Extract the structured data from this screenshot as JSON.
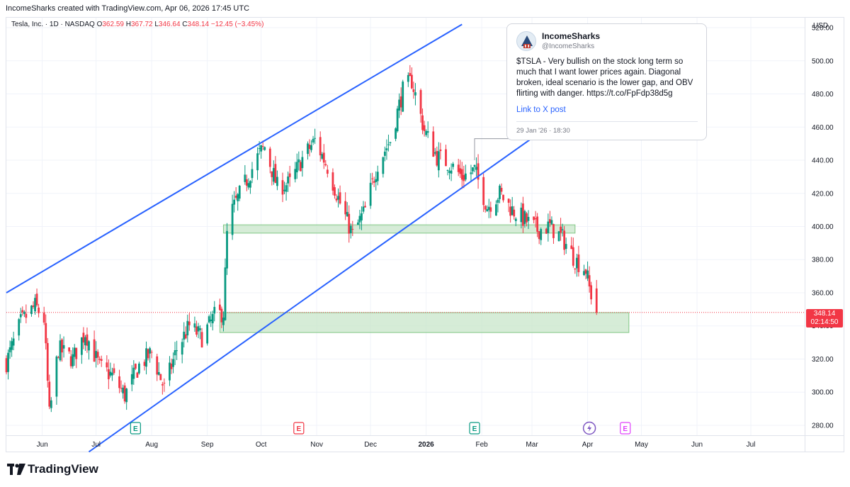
{
  "header": {
    "created_text": "IncomeSharks created with TradingView.com, Apr 06, 2026 17:45 UTC"
  },
  "legend": {
    "symbol_line": "Tesla, Inc. · 1D · NASDAQ",
    "o_label": "O",
    "o_value": "362.59",
    "h_label": "H",
    "h_value": "367.72",
    "l_label": "L",
    "l_value": "346.64",
    "c_label": "C",
    "c_value": "348.14",
    "change": "−12.45 (−3.45%)"
  },
  "price_axis": {
    "currency": "USD",
    "ticks": [
      "520.00",
      "500.00",
      "480.00",
      "460.00",
      "440.00",
      "420.00",
      "400.00",
      "380.00",
      "360.00",
      "340.00",
      "320.00",
      "300.00",
      "280.00"
    ]
  },
  "time_axis": {
    "ticks": [
      {
        "label": "Jun",
        "date": "2025-06-01",
        "bold": false
      },
      {
        "label": "Jul",
        "date": "2025-07-01",
        "bold": false
      },
      {
        "label": "Aug",
        "date": "2025-08-01",
        "bold": false
      },
      {
        "label": "Sep",
        "date": "2025-09-01",
        "bold": false
      },
      {
        "label": "Oct",
        "date": "2025-10-01",
        "bold": false
      },
      {
        "label": "Nov",
        "date": "2025-11-01",
        "bold": false
      },
      {
        "label": "Dec",
        "date": "2025-12-01",
        "bold": false
      },
      {
        "label": "2026",
        "date": "2026-01-01",
        "bold": true
      },
      {
        "label": "Feb",
        "date": "2026-02-01",
        "bold": false
      },
      {
        "label": "Mar",
        "date": "2026-03-01",
        "bold": false
      },
      {
        "label": "Apr",
        "date": "2026-04-01",
        "bold": false
      },
      {
        "label": "May",
        "date": "2026-05-01",
        "bold": false
      },
      {
        "label": "Jun",
        "date": "2026-06-01",
        "bold": false
      },
      {
        "label": "Jul",
        "date": "2026-07-01",
        "bold": false
      }
    ]
  },
  "price_label": {
    "price": "348.14",
    "countdown": "02:14:50",
    "color": "#f23645"
  },
  "tweet": {
    "name": "IncomeSharks",
    "handle": "@IncomeSharks",
    "text": "$TSLA - Very bullish on the stock long term so much that I want lower prices again. Diagonal broken, ideal scenario is the lower gap, and OBV flirting with danger. https://t.co/FpFdp38d5g",
    "link_text": "Link to X post",
    "date": "29 Jan '26 · 18:30"
  },
  "brand": {
    "name": "TradingView"
  },
  "chart_data": {
    "type": "candlestick",
    "symbol": "TSLA",
    "interval": "1D",
    "ylim": [
      274,
      526
    ],
    "date_range": [
      "2025-05-12",
      "2026-07-31"
    ],
    "up_color": "#089981",
    "down_color": "#f23645",
    "closes": [
      {
        "date": "2025-05-12",
        "close": 318
      },
      {
        "date": "2025-05-20",
        "close": 342
      },
      {
        "date": "2025-05-28",
        "close": 352
      },
      {
        "date": "2025-06-02",
        "close": 344
      },
      {
        "date": "2025-06-05",
        "close": 286
      },
      {
        "date": "2025-06-10",
        "close": 326
      },
      {
        "date": "2025-06-18",
        "close": 320
      },
      {
        "date": "2025-06-25",
        "close": 336
      },
      {
        "date": "2025-07-03",
        "close": 315
      },
      {
        "date": "2025-07-10",
        "close": 310
      },
      {
        "date": "2025-07-17",
        "close": 298
      },
      {
        "date": "2025-07-25",
        "close": 316
      },
      {
        "date": "2025-08-01",
        "close": 324
      },
      {
        "date": "2025-08-08",
        "close": 302
      },
      {
        "date": "2025-08-15",
        "close": 326
      },
      {
        "date": "2025-08-22",
        "close": 340
      },
      {
        "date": "2025-08-29",
        "close": 333
      },
      {
        "date": "2025-09-05",
        "close": 346
      },
      {
        "date": "2025-09-10",
        "close": 348
      },
      {
        "date": "2025-09-12",
        "close": 395
      },
      {
        "date": "2025-09-15",
        "close": 410
      },
      {
        "date": "2025-09-22",
        "close": 426
      },
      {
        "date": "2025-09-30",
        "close": 444
      },
      {
        "date": "2025-10-03",
        "close": 448
      },
      {
        "date": "2025-10-10",
        "close": 424
      },
      {
        "date": "2025-10-17",
        "close": 426
      },
      {
        "date": "2025-10-24",
        "close": 441
      },
      {
        "date": "2025-10-31",
        "close": 452
      },
      {
        "date": "2025-11-07",
        "close": 436
      },
      {
        "date": "2025-11-14",
        "close": 414
      },
      {
        "date": "2025-11-21",
        "close": 395
      },
      {
        "date": "2025-11-28",
        "close": 410
      },
      {
        "date": "2025-12-05",
        "close": 438
      },
      {
        "date": "2025-12-12",
        "close": 452
      },
      {
        "date": "2025-12-19",
        "close": 482
      },
      {
        "date": "2025-12-24",
        "close": 488
      },
      {
        "date": "2025-12-31",
        "close": 458
      },
      {
        "date": "2026-01-07",
        "close": 442
      },
      {
        "date": "2026-01-14",
        "close": 438
      },
      {
        "date": "2026-01-21",
        "close": 430
      },
      {
        "date": "2026-01-28",
        "close": 434
      },
      {
        "date": "2026-02-04",
        "close": 412
      },
      {
        "date": "2026-02-11",
        "close": 420
      },
      {
        "date": "2026-02-18",
        "close": 410
      },
      {
        "date": "2026-02-25",
        "close": 404
      },
      {
        "date": "2026-03-04",
        "close": 398
      },
      {
        "date": "2026-03-11",
        "close": 400
      },
      {
        "date": "2026-03-18",
        "close": 393
      },
      {
        "date": "2026-03-25",
        "close": 380
      },
      {
        "date": "2026-03-31",
        "close": 374
      },
      {
        "date": "2026-04-02",
        "close": 362.59
      },
      {
        "date": "2026-04-06",
        "close": 348.14
      }
    ],
    "last_bar": {
      "open": 362.59,
      "high": 367.72,
      "low": 346.64,
      "close": 348.14
    },
    "trendlines": [
      {
        "name": "channel-upper",
        "color": "#2962ff",
        "from": {
          "date": "2025-05-12",
          "price": 360
        },
        "to": {
          "date": "2026-01-21",
          "price": 522
        }
      },
      {
        "name": "channel-lower",
        "color": "#2962ff",
        "from": {
          "date": "2025-06-27",
          "price": 264
        },
        "to": {
          "date": "2026-03-15",
          "price": 464
        }
      }
    ],
    "zones": [
      {
        "name": "zone-400",
        "from_date": "2025-09-10",
        "to_date": "2026-03-25",
        "low": 396,
        "high": 401,
        "color": "#c8e6c9"
      },
      {
        "name": "zone-gap",
        "from_date": "2025-09-08",
        "to_date": "2026-04-24",
        "low": 336,
        "high": 348,
        "color": "#c8e6c9"
      }
    ],
    "last_price_line": 348.14,
    "event_markers": [
      {
        "name": "earnings-jul",
        "date": "2025-07-23",
        "letter": "E",
        "kind": "earnings-past"
      },
      {
        "name": "earnings-oct",
        "date": "2025-10-22",
        "letter": "E",
        "kind": "earnings-past-red"
      },
      {
        "name": "earnings-jan",
        "date": "2026-01-28",
        "letter": "E",
        "kind": "earnings-past"
      },
      {
        "name": "dividend-apr",
        "date": "2026-04-02",
        "letter": "⚡",
        "kind": "event-purple"
      },
      {
        "name": "earnings-apr",
        "date": "2026-04-22",
        "letter": "E",
        "kind": "earnings-future"
      }
    ]
  }
}
